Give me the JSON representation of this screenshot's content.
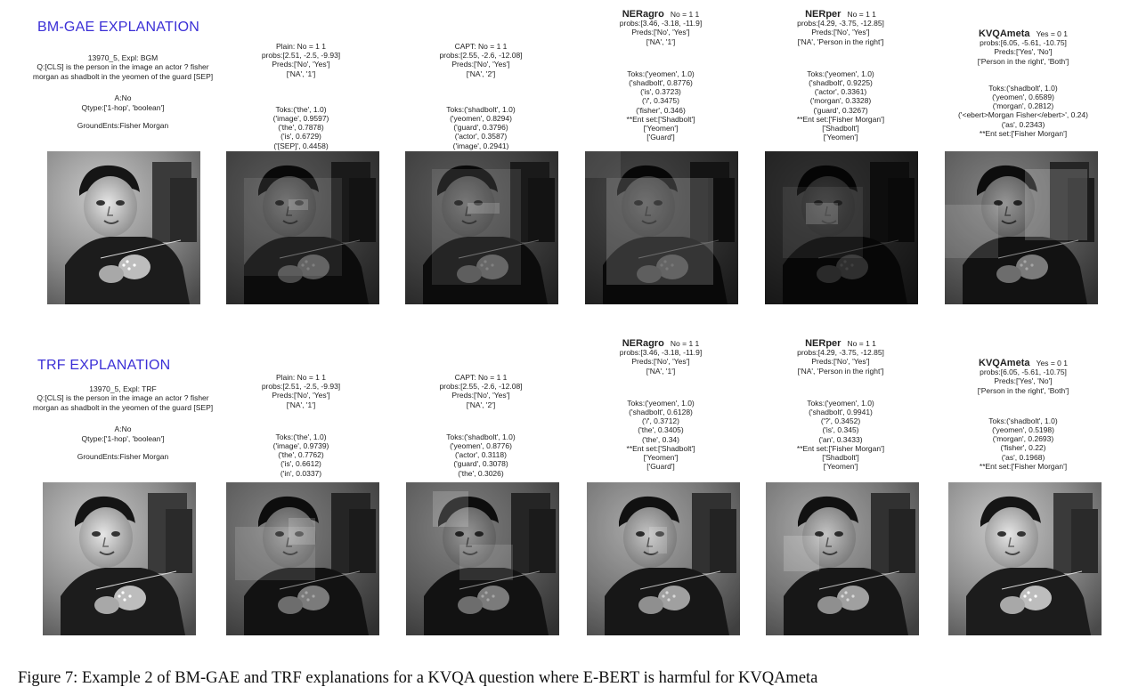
{
  "caption": "Figure 7: Example 2 of BM-GAE and TRF explanations for a KVQA question where E-BERT is harmful for KVQAmeta",
  "rows": [
    {
      "title": "BM-GAE EXPLANATION",
      "info": {
        "id": "13970_5, Expl: BGM",
        "question": "Q:[CLS] is the person in the image an actor ? fisher morgan as shadbolt in the yeomen of the guard [SEP]",
        "answer": "A:No",
        "qtype": "Qtype:['1-hop', 'boolean']",
        "ground": "GroundEnts:Fisher Morgan"
      },
      "cols": [
        {
          "name": "",
          "label": "Plain: No = 1 1",
          "probs": "probs:[2.51, -2.5, -9.93]",
          "preds": "Preds:['No', 'Yes']",
          "ents": "['NA', '1']",
          "toks": [
            "Toks:('the', 1.0)",
            "('image', 0.9597)",
            "('the', 0.7878)",
            "('is', 0.6729)",
            "('[SEP]', 0.4458)"
          ],
          "entset": "",
          "entitems": []
        },
        {
          "name": "",
          "label": "CAPT: No = 1 1",
          "probs": "probs:[2.55, -2.6, -12.08]",
          "preds": "Preds:['No', 'Yes']",
          "ents": "['NA', '2']",
          "toks": [
            "Toks:('shadbolt', 1.0)",
            "('yeomen', 0.8294)",
            "('guard', 0.3796)",
            "('actor', 0.3587)",
            "('image', 0.2941)"
          ],
          "entset": "",
          "entitems": []
        },
        {
          "name": "NERagro",
          "label": "No = 1 1",
          "probs": "probs:[3.46, -3.18, -11.9]",
          "preds": "Preds:['No', 'Yes']",
          "ents": "['NA', '1']",
          "toks": [
            "Toks:('yeomen', 1.0)",
            "('shadbolt', 0.8776)",
            "('is', 0.3723)",
            "('/', 0.3475)",
            "('fisher', 0.346)"
          ],
          "entset": "**Ent set:['Shadbolt']",
          "entitems": [
            "['Yeomen']",
            "['Guard']"
          ]
        },
        {
          "name": "NERper",
          "label": "No = 1 1",
          "probs": "probs:[4.29, -3.75, -12.85]",
          "preds": "Preds:['No', 'Yes']",
          "ents": "['NA', 'Person in the right']",
          "toks": [
            "Toks:('yeomen', 1.0)",
            "('shadbolt', 0.9225)",
            "('actor', 0.3361)",
            "('morgan', 0.3328)",
            "('guard', 0.3267)"
          ],
          "entset": "**Ent set:['Fisher Morgan']",
          "entitems": [
            "['Shadbolt']",
            "['Yeomen']"
          ]
        },
        {
          "name": "KVQAmeta",
          "label": "Yes = 0 1",
          "probs": "probs:[6.05, -5.61, -10.75]",
          "preds": "Preds:['Yes', 'No']",
          "ents": "['Person in the right', 'Both']",
          "toks": [
            "Toks:('shadbolt', 1.0)",
            "('yeomen', 0.6589)",
            "('morgan', 0.2812)",
            "('<ebert>Morgan Fisher</ebert>', 0.24)",
            "('as', 0.2343)"
          ],
          "entset": "**Ent set:['Fisher Morgan']",
          "entitems": []
        }
      ]
    },
    {
      "title": "TRF EXPLANATION",
      "info": {
        "id": "13970_5, Expl: TRF",
        "question": "Q:[CLS] is the person in the image an actor ? fisher morgan as shadbolt in the yeomen of the guard [SEP]",
        "answer": "A:No",
        "qtype": "Qtype:['1-hop', 'boolean']",
        "ground": "GroundEnts:Fisher Morgan"
      },
      "cols": [
        {
          "name": "",
          "label": "Plain: No = 1 1",
          "probs": "probs:[2.51, -2.5, -9.93]",
          "preds": "Preds:['No', 'Yes']",
          "ents": "['NA', '1']",
          "toks": [
            "Toks:('the', 1.0)",
            "('image', 0.9739)",
            "('the', 0.7762)",
            "('is', 0.6612)",
            "('in', 0.0337)"
          ],
          "entset": "",
          "entitems": []
        },
        {
          "name": "",
          "label": "CAPT: No = 1 1",
          "probs": "probs:[2.55, -2.6, -12.08]",
          "preds": "Preds:['No', 'Yes']",
          "ents": "['NA', '2']",
          "toks": [
            "Toks:('shadbolt', 1.0)",
            "('yeomen', 0.8776)",
            "('actor', 0.3118)",
            "('guard', 0.3078)",
            "('the', 0.3026)"
          ],
          "entset": "",
          "entitems": []
        },
        {
          "name": "NERagro",
          "label": "No = 1 1",
          "probs": "probs:[3.46, -3.18, -11.9]",
          "preds": "Preds:['No', 'Yes']",
          "ents": "['NA', '1']",
          "toks": [
            "Toks:('yeomen', 1.0)",
            "('shadbolt', 0.6128)",
            "('/', 0.3712)",
            "('the', 0.3405)",
            "('the', 0.34)"
          ],
          "entset": "**Ent set:['Shadbolt']",
          "entitems": [
            "['Yeomen']",
            "['Guard']"
          ]
        },
        {
          "name": "NERper",
          "label": "No = 1 1",
          "probs": "probs:[4.29, -3.75, -12.85]",
          "preds": "Preds:['No', 'Yes']",
          "ents": "['NA', 'Person in the right']",
          "toks": [
            "Toks:('yeomen', 1.0)",
            "('shadbolt', 0.9941)",
            "('?', 0.3452)",
            "('is', 0.345)",
            "('an', 0.3433)"
          ],
          "entset": "**Ent set:['Fisher Morgan']",
          "entitems": [
            "['Shadbolt']",
            "['Yeomen']"
          ]
        },
        {
          "name": "KVQAmeta",
          "label": "Yes = 0 1",
          "probs": "probs:[6.05, -5.61, -10.75]",
          "preds": "Preds:['Yes', 'No']",
          "ents": "['Person in the right', 'Both']",
          "toks": [
            "Toks:('shadbolt', 1.0)",
            "('yeomen', 0.5198)",
            "('morgan', 0.2693)",
            "('fisher', 0.22)",
            "('as', 0.1968)"
          ],
          "entset": "**Ent set:['Fisher Morgan']",
          "entitems": []
        }
      ]
    }
  ],
  "colors": {
    "title": "#3b2fd6"
  }
}
